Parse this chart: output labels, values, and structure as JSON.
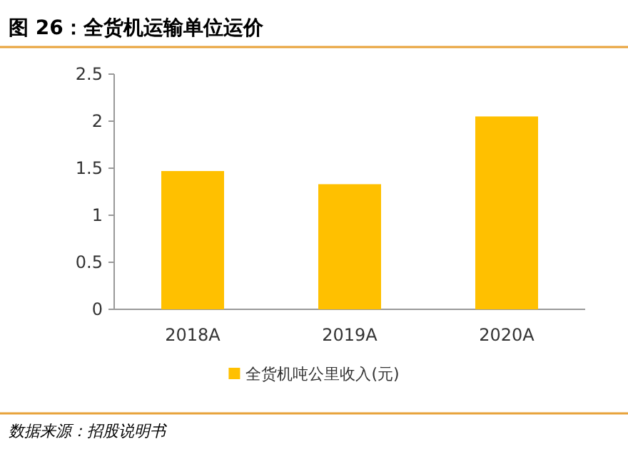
{
  "chart_data": {
    "type": "bar",
    "title": "图 26：全货机运输单位运价",
    "categories": [
      "2018A",
      "2019A",
      "2020A"
    ],
    "series": [
      {
        "name": "全货机吨公里收入(元)",
        "color": "#ffc000",
        "values": [
          1.47,
          1.33,
          2.05
        ]
      }
    ],
    "ylim": [
      0,
      2.5
    ],
    "yticks": [
      0,
      0.5,
      1,
      1.5,
      2,
      2.5
    ],
    "grid": false,
    "legend": "bottom",
    "annotations": [
      "数据来源：招股说明书"
    ]
  }
}
